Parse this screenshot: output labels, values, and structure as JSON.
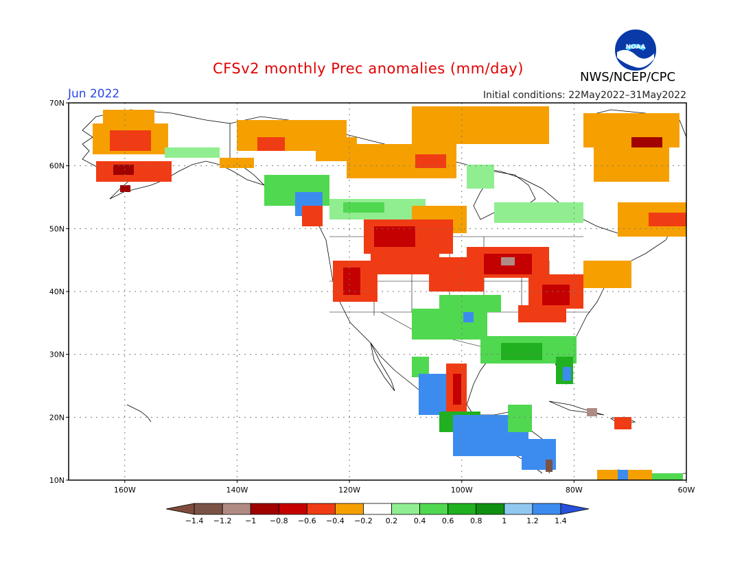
{
  "header": {
    "title": "CFSv2 monthly Prec anomalies (mm/day)",
    "month": "Jun 2022",
    "initial_conditions": "Initial conditions: 22May2022–31May2022",
    "agency": "NWS/NCEP/CPC",
    "logo_text": "NOAA"
  },
  "map": {
    "lat_labels": [
      "70N",
      "60N",
      "50N",
      "40N",
      "30N",
      "20N",
      "10N"
    ],
    "lon_labels": [
      "160W",
      "140W",
      "120W",
      "100W",
      "80W",
      "60W"
    ],
    "lat_range": [
      10,
      70
    ],
    "lon_range": [
      -170,
      -60
    ],
    "grid": "dotted"
  },
  "legend": {
    "labels": [
      "-1.4",
      "-1.2",
      "-1",
      "-0.8",
      "-0.6",
      "-0.4",
      "-0.2",
      "0.2",
      "0.4",
      "0.6",
      "0.8",
      "1",
      "1.2",
      "1.4"
    ],
    "colors": [
      "#7f4c3c",
      "#7a5346",
      "#b08b84",
      "#a00000",
      "#c40000",
      "#f03c14",
      "#f5a000",
      "#ffffff",
      "#90ee90",
      "#50d850",
      "#20b020",
      "#109010",
      "#90c8f0",
      "#3c8cf0",
      "#2850d8"
    ]
  }
}
